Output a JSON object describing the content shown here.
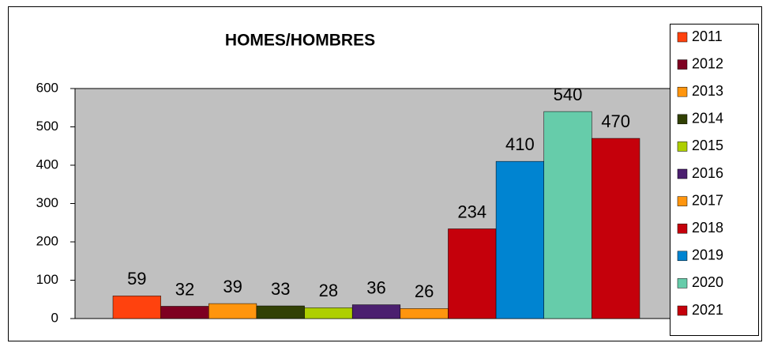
{
  "chart_data": {
    "type": "bar",
    "title": "HOMES/HOMBRES",
    "series": [
      {
        "name": "2011",
        "color": "#ff420e",
        "values": [
          59
        ]
      },
      {
        "name": "2012",
        "color": "#7e0021",
        "values": [
          32
        ]
      },
      {
        "name": "2013",
        "color": "#ff950e",
        "values": [
          39
        ]
      },
      {
        "name": "2014",
        "color": "#314004",
        "values": [
          33
        ]
      },
      {
        "name": "2015",
        "color": "#aecf00",
        "values": [
          28
        ]
      },
      {
        "name": "2016",
        "color": "#4b1f6f",
        "values": [
          36
        ]
      },
      {
        "name": "2017",
        "color": "#ff950e",
        "values": [
          26
        ]
      },
      {
        "name": "2018",
        "color": "#c5000b",
        "values": [
          234
        ]
      },
      {
        "name": "2019",
        "color": "#0084d1",
        "values": [
          410
        ]
      },
      {
        "name": "2020",
        "color": "#66ccaa",
        "values": [
          540
        ]
      },
      {
        "name": "2021",
        "color": "#c5000b",
        "values": [
          470
        ]
      }
    ],
    "ylim": [
      0,
      600
    ],
    "yticks": [
      0,
      100,
      200,
      300,
      400,
      500,
      600
    ],
    "grid": false,
    "legend": "right"
  }
}
